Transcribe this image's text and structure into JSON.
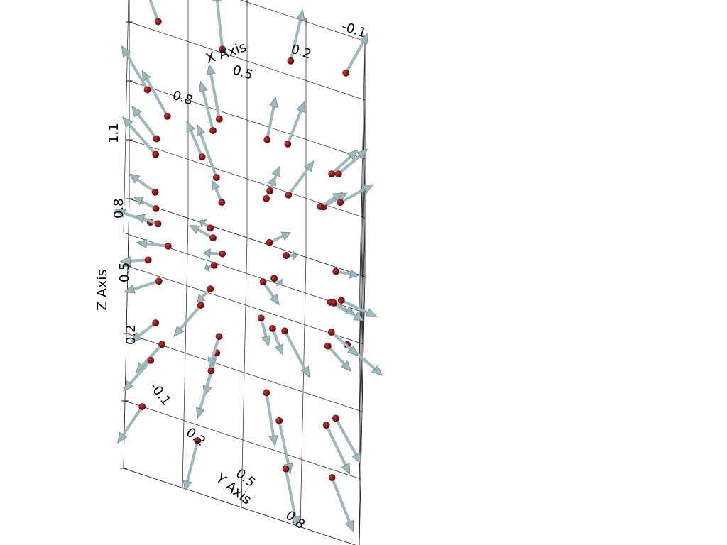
{
  "colors": {
    "point": "#7a0a0a",
    "arrow": "#9fb8bc",
    "arrow_edge": "#6f8a8f",
    "grid": "#222222",
    "background": "#ffffff"
  },
  "chart_data": {
    "type": "3d-vector-field",
    "x_axis": {
      "title": "X Axis",
      "range": [
        -0.1,
        1.1
      ],
      "ticks": [
        "-0.1",
        "0.2",
        "0.5",
        "0.8"
      ]
    },
    "y_axis": {
      "title": "Y Axis",
      "range": [
        -0.1,
        1.1
      ],
      "ticks": [
        "-0.1",
        "0.2",
        "0.5",
        "0.8"
      ]
    },
    "z_axis": {
      "title": "Z Axis",
      "range": [
        -0.1,
        1.1
      ],
      "ticks": [
        "-0.1",
        "0.2",
        "0.5",
        "0.8",
        "1.1"
      ]
    },
    "grid": true,
    "vector_field": "radial (points displaced from the grid centre, arrows point outward)",
    "points": [
      [
        0,
        0,
        0
      ],
      [
        0,
        0,
        0.33
      ],
      [
        0,
        0,
        0.67
      ],
      [
        0,
        0,
        1
      ],
      [
        0,
        0.33,
        0
      ],
      [
        0,
        0.33,
        0.33
      ],
      [
        0,
        0.33,
        0.67
      ],
      [
        0,
        0.33,
        1
      ],
      [
        0,
        0.67,
        0
      ],
      [
        0,
        0.67,
        0.33
      ],
      [
        0,
        0.67,
        0.67
      ],
      [
        0,
        0.67,
        1
      ],
      [
        0,
        1,
        0
      ],
      [
        0,
        1,
        0.33
      ],
      [
        0,
        1,
        0.67
      ],
      [
        0,
        1,
        1
      ],
      [
        0.33,
        0,
        0
      ],
      [
        0.33,
        0,
        0.33
      ],
      [
        0.33,
        0,
        0.67
      ],
      [
        0.33,
        0,
        1
      ],
      [
        0.33,
        0.33,
        0
      ],
      [
        0.33,
        0.33,
        0.33
      ],
      [
        0.33,
        0.33,
        0.67
      ],
      [
        0.33,
        0.33,
        1
      ],
      [
        0.33,
        0.67,
        0
      ],
      [
        0.33,
        0.67,
        0.33
      ],
      [
        0.33,
        0.67,
        0.67
      ],
      [
        0.33,
        0.67,
        1
      ],
      [
        0.33,
        1,
        0
      ],
      [
        0.33,
        1,
        0.33
      ],
      [
        0.33,
        1,
        0.67
      ],
      [
        0.33,
        1,
        1
      ],
      [
        0.67,
        0,
        0
      ],
      [
        0.67,
        0,
        0.33
      ],
      [
        0.67,
        0,
        0.67
      ],
      [
        0.67,
        0,
        1
      ],
      [
        0.67,
        0.33,
        0
      ],
      [
        0.67,
        0.33,
        0.33
      ],
      [
        0.67,
        0.33,
        0.67
      ],
      [
        0.67,
        0.33,
        1
      ],
      [
        0.67,
        0.67,
        0
      ],
      [
        0.67,
        0.67,
        0.33
      ],
      [
        0.67,
        0.67,
        0.67
      ],
      [
        0.67,
        0.67,
        1
      ],
      [
        0.67,
        1,
        0
      ],
      [
        0.67,
        1,
        0.33
      ],
      [
        0.67,
        1,
        0.67
      ],
      [
        0.67,
        1,
        1
      ],
      [
        1,
        0,
        0
      ],
      [
        1,
        0,
        0.33
      ],
      [
        1,
        0,
        0.67
      ],
      [
        1,
        0,
        1
      ],
      [
        1,
        0.33,
        0
      ],
      [
        1,
        0.33,
        0.33
      ],
      [
        1,
        0.33,
        0.67
      ],
      [
        1,
        0.33,
        1
      ],
      [
        1,
        0.67,
        0
      ],
      [
        1,
        0.67,
        0.33
      ],
      [
        1,
        0.67,
        0.67
      ],
      [
        1,
        0.67,
        1
      ],
      [
        1,
        1,
        0
      ],
      [
        1,
        1,
        0.33
      ],
      [
        1,
        1,
        0.67
      ],
      [
        1,
        1,
        1
      ]
    ]
  }
}
